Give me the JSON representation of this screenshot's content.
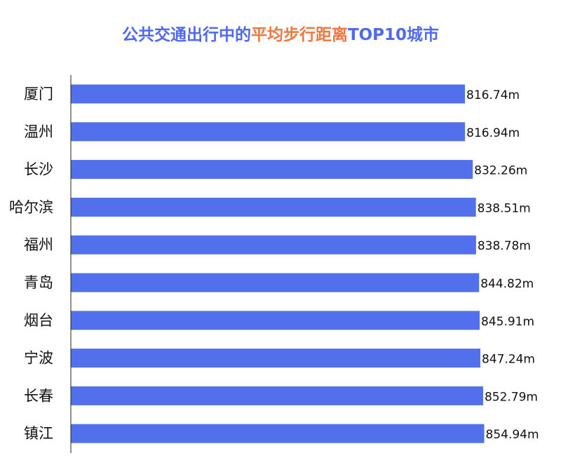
{
  "title": {
    "part1": "公共交通出行中的",
    "part2": "平均步行距离",
    "part3": "TOP10城市"
  },
  "colors": {
    "title_blue": "#5169f0",
    "title_orange": "#f07840",
    "bar": "#5270ec",
    "axis": "#222222"
  },
  "chart_data": {
    "type": "bar",
    "orientation": "horizontal",
    "title": "公共交通出行中的平均步行距离TOP10城市",
    "categories": [
      "厦门",
      "温州",
      "长沙",
      "哈尔滨",
      "福州",
      "青岛",
      "烟台",
      "宁波",
      "长春",
      "镇江"
    ],
    "values": [
      816.74,
      816.94,
      832.26,
      838.51,
      838.78,
      844.82,
      845.91,
      847.24,
      852.79,
      854.94
    ],
    "value_labels": [
      "816.74m",
      "816.94m",
      "832.26m",
      "838.51m",
      "838.78m",
      "844.82m",
      "845.91m",
      "847.24m",
      "852.79m",
      "854.94m"
    ],
    "unit": "m",
    "xlabel": "",
    "ylabel": "",
    "grid": false,
    "legend": "none"
  }
}
